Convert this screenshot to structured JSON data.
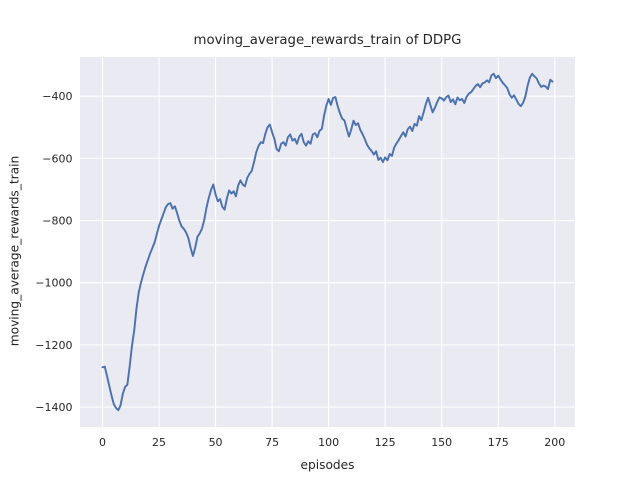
{
  "figure": {
    "title": "moving_average_rewards_train of DDPG",
    "xlabel": "episodes",
    "ylabel": "moving_average_rewards_train"
  },
  "chart_data": {
    "type": "line",
    "title": "moving_average_rewards_train of DDPG",
    "xlabel": "episodes",
    "ylabel": "moving_average_rewards_train",
    "grid": true,
    "legend": "none",
    "x_ticks": [
      0,
      25,
      50,
      75,
      100,
      125,
      150,
      175,
      200
    ],
    "x_tick_labels": [
      "0",
      "25",
      "50",
      "75",
      "100",
      "125",
      "150",
      "175",
      "200"
    ],
    "y_ticks": [
      -400,
      -600,
      -800,
      -1000,
      -1200,
      -1400
    ],
    "y_tick_labels": [
      "−400",
      "−600",
      "−800",
      "−1000",
      "−1200",
      "−1400"
    ],
    "xlim": [
      -9.95,
      208.95
    ],
    "ylim": [
      -1464.1,
      -273.9
    ],
    "colors": {
      "line": "#4C72B0",
      "plot_background": "#EAEAF2",
      "grid": "#FFFFFF",
      "text": "#262626",
      "figure_background": "#FFFFFF"
    },
    "series": [
      {
        "name": "moving_average_rewards_train",
        "x": "episode index 0-199",
        "values": [
          -1272,
          -1270,
          -1300,
          -1332,
          -1363,
          -1391,
          -1403,
          -1410,
          -1394,
          -1357,
          -1335,
          -1328,
          -1270,
          -1205,
          -1155,
          -1085,
          -1032,
          -1000,
          -974,
          -949,
          -928,
          -907,
          -889,
          -871,
          -844,
          -817,
          -797,
          -777,
          -757,
          -747,
          -744,
          -762,
          -754,
          -776,
          -801,
          -819,
          -827,
          -839,
          -857,
          -889,
          -914,
          -887,
          -852,
          -841,
          -826,
          -798,
          -758,
          -727,
          -701,
          -684,
          -716,
          -738,
          -731,
          -756,
          -765,
          -729,
          -703,
          -713,
          -706,
          -722,
          -687,
          -671,
          -684,
          -690,
          -663,
          -650,
          -640,
          -612,
          -580,
          -560,
          -548,
          -551,
          -521,
          -500,
          -491,
          -516,
          -537,
          -570,
          -577,
          -553,
          -548,
          -559,
          -532,
          -523,
          -543,
          -537,
          -553,
          -530,
          -521,
          -548,
          -559,
          -545,
          -553,
          -523,
          -519,
          -532,
          -511,
          -505,
          -462,
          -430,
          -409,
          -428,
          -405,
          -403,
          -432,
          -455,
          -472,
          -478,
          -505,
          -530,
          -507,
          -479,
          -493,
          -487,
          -508,
          -522,
          -538,
          -556,
          -568,
          -576,
          -588,
          -577,
          -605,
          -598,
          -612,
          -597,
          -606,
          -586,
          -592,
          -565,
          -552,
          -541,
          -528,
          -516,
          -530,
          -506,
          -498,
          -512,
          -489,
          -495,
          -464,
          -477,
          -452,
          -425,
          -405,
          -429,
          -452,
          -437,
          -419,
          -404,
          -407,
          -414,
          -403,
          -398,
          -419,
          -410,
          -426,
          -404,
          -413,
          -409,
          -422,
          -402,
          -392,
          -387,
          -377,
          -367,
          -361,
          -371,
          -359,
          -356,
          -349,
          -355,
          -333,
          -328,
          -342,
          -334,
          -346,
          -357,
          -365,
          -374,
          -394,
          -405,
          -397,
          -411,
          -425,
          -432,
          -421,
          -401,
          -366,
          -340,
          -328,
          -336,
          -343,
          -359,
          -370,
          -366,
          -369,
          -377,
          -347,
          -353
        ]
      }
    ]
  }
}
